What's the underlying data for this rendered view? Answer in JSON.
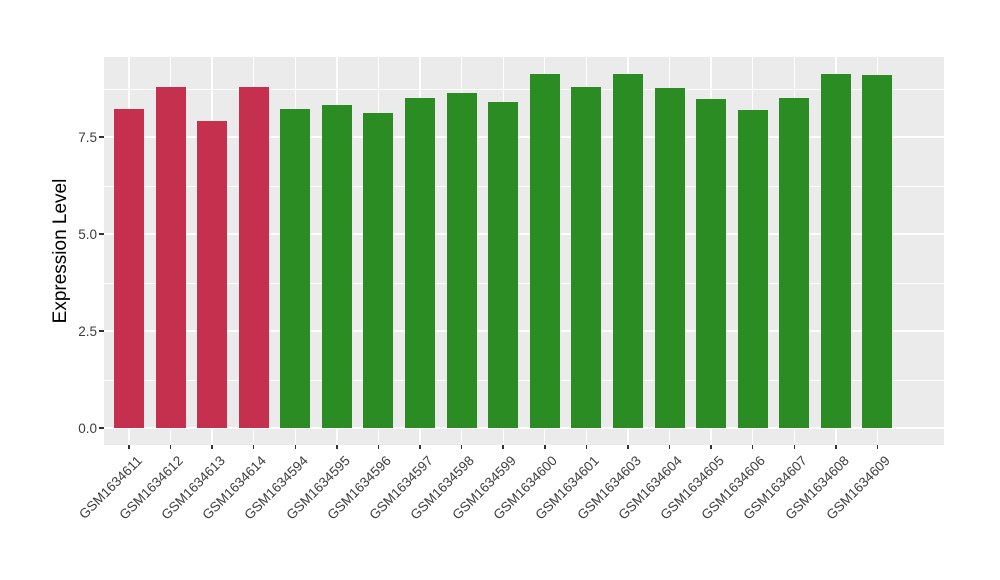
{
  "figure": {
    "background": "#FFFFFF",
    "panel_background": "#EBEBEB",
    "grid_color": "#FFFFFF",
    "tick_color": "#333333",
    "tick_label_color": "#3D3D3D"
  },
  "chart_data": {
    "type": "bar",
    "title": "",
    "xlabel": "",
    "ylabel": "Expression Level",
    "categories": [
      "GSM1634611",
      "GSM1634612",
      "GSM1634613",
      "GSM1634614",
      "GSM1634594",
      "GSM1634595",
      "GSM1634596",
      "GSM1634597",
      "GSM1634598",
      "GSM1634599",
      "GSM1634600",
      "GSM1634601",
      "GSM1634603",
      "GSM1634604",
      "GSM1634605",
      "GSM1634606",
      "GSM1634607",
      "GSM1634608",
      "GSM1634609"
    ],
    "values": [
      8.23,
      8.8,
      7.92,
      8.78,
      8.21,
      8.33,
      8.13,
      8.51,
      8.63,
      8.4,
      9.13,
      8.8,
      9.12,
      8.76,
      8.48,
      8.2,
      8.51,
      9.13,
      9.11
    ],
    "bar_group": [
      "red",
      "red",
      "red",
      "red",
      "green",
      "green",
      "green",
      "green",
      "green",
      "green",
      "green",
      "green",
      "green",
      "green",
      "green",
      "green",
      "green",
      "green",
      "green"
    ],
    "group_colors": {
      "red": "#C4304D",
      "green": "#2A8C22"
    },
    "y_ticks": [
      0.0,
      2.5,
      5.0,
      7.5
    ],
    "y_tick_labels": [
      "0.0",
      "2.5",
      "5.0",
      "7.5"
    ],
    "y_minor_ticks": [
      1.25,
      3.75,
      6.25,
      8.75
    ],
    "ylim": [
      -0.45,
      9.56
    ],
    "bar_width_fraction": 0.72,
    "grid": "white major+minor horizontal, white vertical at category centers",
    "legend": "none"
  }
}
